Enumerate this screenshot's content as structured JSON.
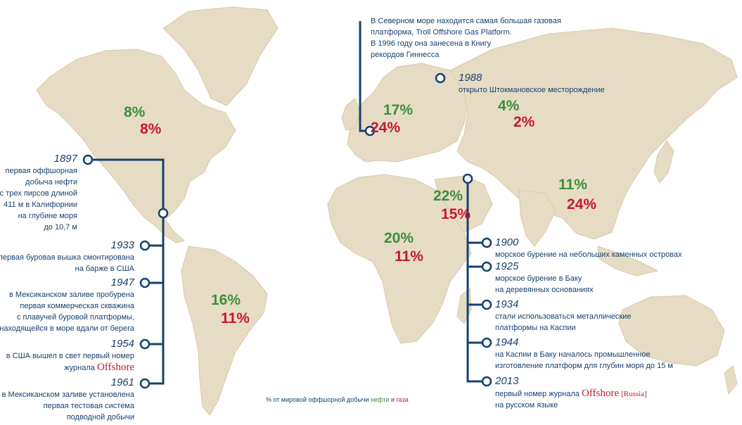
{
  "colors": {
    "oil": "#3d8f3a",
    "gas": "#c4192f",
    "timeline": "#16406f",
    "land": "#e6dcc4"
  },
  "regions": {
    "north_america": {
      "oil": "8%",
      "gas": "8%"
    },
    "north_sea": {
      "oil": "17%",
      "gas": "24%"
    },
    "russia": {
      "oil": "4%",
      "gas": "2%"
    },
    "asia_pacific": {
      "oil": "11%",
      "gas": "24%"
    },
    "middle_east": {
      "oil": "22%",
      "gas": "15%"
    },
    "africa": {
      "oil": "20%",
      "gas": "11%"
    },
    "south_america": {
      "oil": "16%",
      "gas": "11%"
    }
  },
  "notes": {
    "north_sea": {
      "line1": "В Северном море находится самая большая газовая",
      "line2": "платформа, Troll Offshore Gas Platform.",
      "line3": "В 1996 году она занесена в Книгу",
      "line4": "рекордов Гиннесса"
    },
    "shtokman": {
      "year": "1988",
      "text": "открыто Штокмановское месторождение"
    }
  },
  "left_timeline": [
    {
      "year": "1897",
      "lines": [
        "первая оффшорная",
        "добыча нефти",
        "с трех пирсов длиной",
        "411 м в Калифорнии",
        "на глубине моря",
        "до 10,7 м"
      ]
    },
    {
      "year": "1933",
      "lines": [
        "первая буровая вышка смонтирована",
        "на барже в США"
      ]
    },
    {
      "year": "1947",
      "lines": [
        "в Мексиканском заливе пробурена",
        "первая коммерческая скважина",
        "с плавучей буровой платформы,",
        "находящейся в море вдали от берега"
      ]
    },
    {
      "year": "1954",
      "lines": [
        "в США вышел в свет первый номер",
        "журнала"
      ],
      "brand": "Offshore"
    },
    {
      "year": "1961",
      "lines": [
        "в Мексиканском заливе установлена",
        "первая тестовая система",
        "подводной добычи"
      ]
    }
  ],
  "right_timeline": [
    {
      "year": "1900",
      "lines": [
        "морское бурение на небольших каменных островах"
      ]
    },
    {
      "year": "1925",
      "lines": [
        "морское бурение в Баку",
        "на деревянных основаниях"
      ]
    },
    {
      "year": "1934",
      "lines": [
        "стали использоваться металлические",
        "платформы на Каспии"
      ]
    },
    {
      "year": "1944",
      "lines": [
        "на Каспии в Баку началось промышленное",
        "изготовление платформ для глубин моря до 15 м"
      ]
    },
    {
      "year": "2013",
      "lines": [
        "первый номер журнала",
        "на русском языке"
      ],
      "brand": "Offshore",
      "brand_suffix": "[Russia]"
    }
  ],
  "legend": {
    "prefix": "% от мировой оффшорной добычи",
    "oil": "нефти",
    "and": "и",
    "gas": "газа"
  }
}
